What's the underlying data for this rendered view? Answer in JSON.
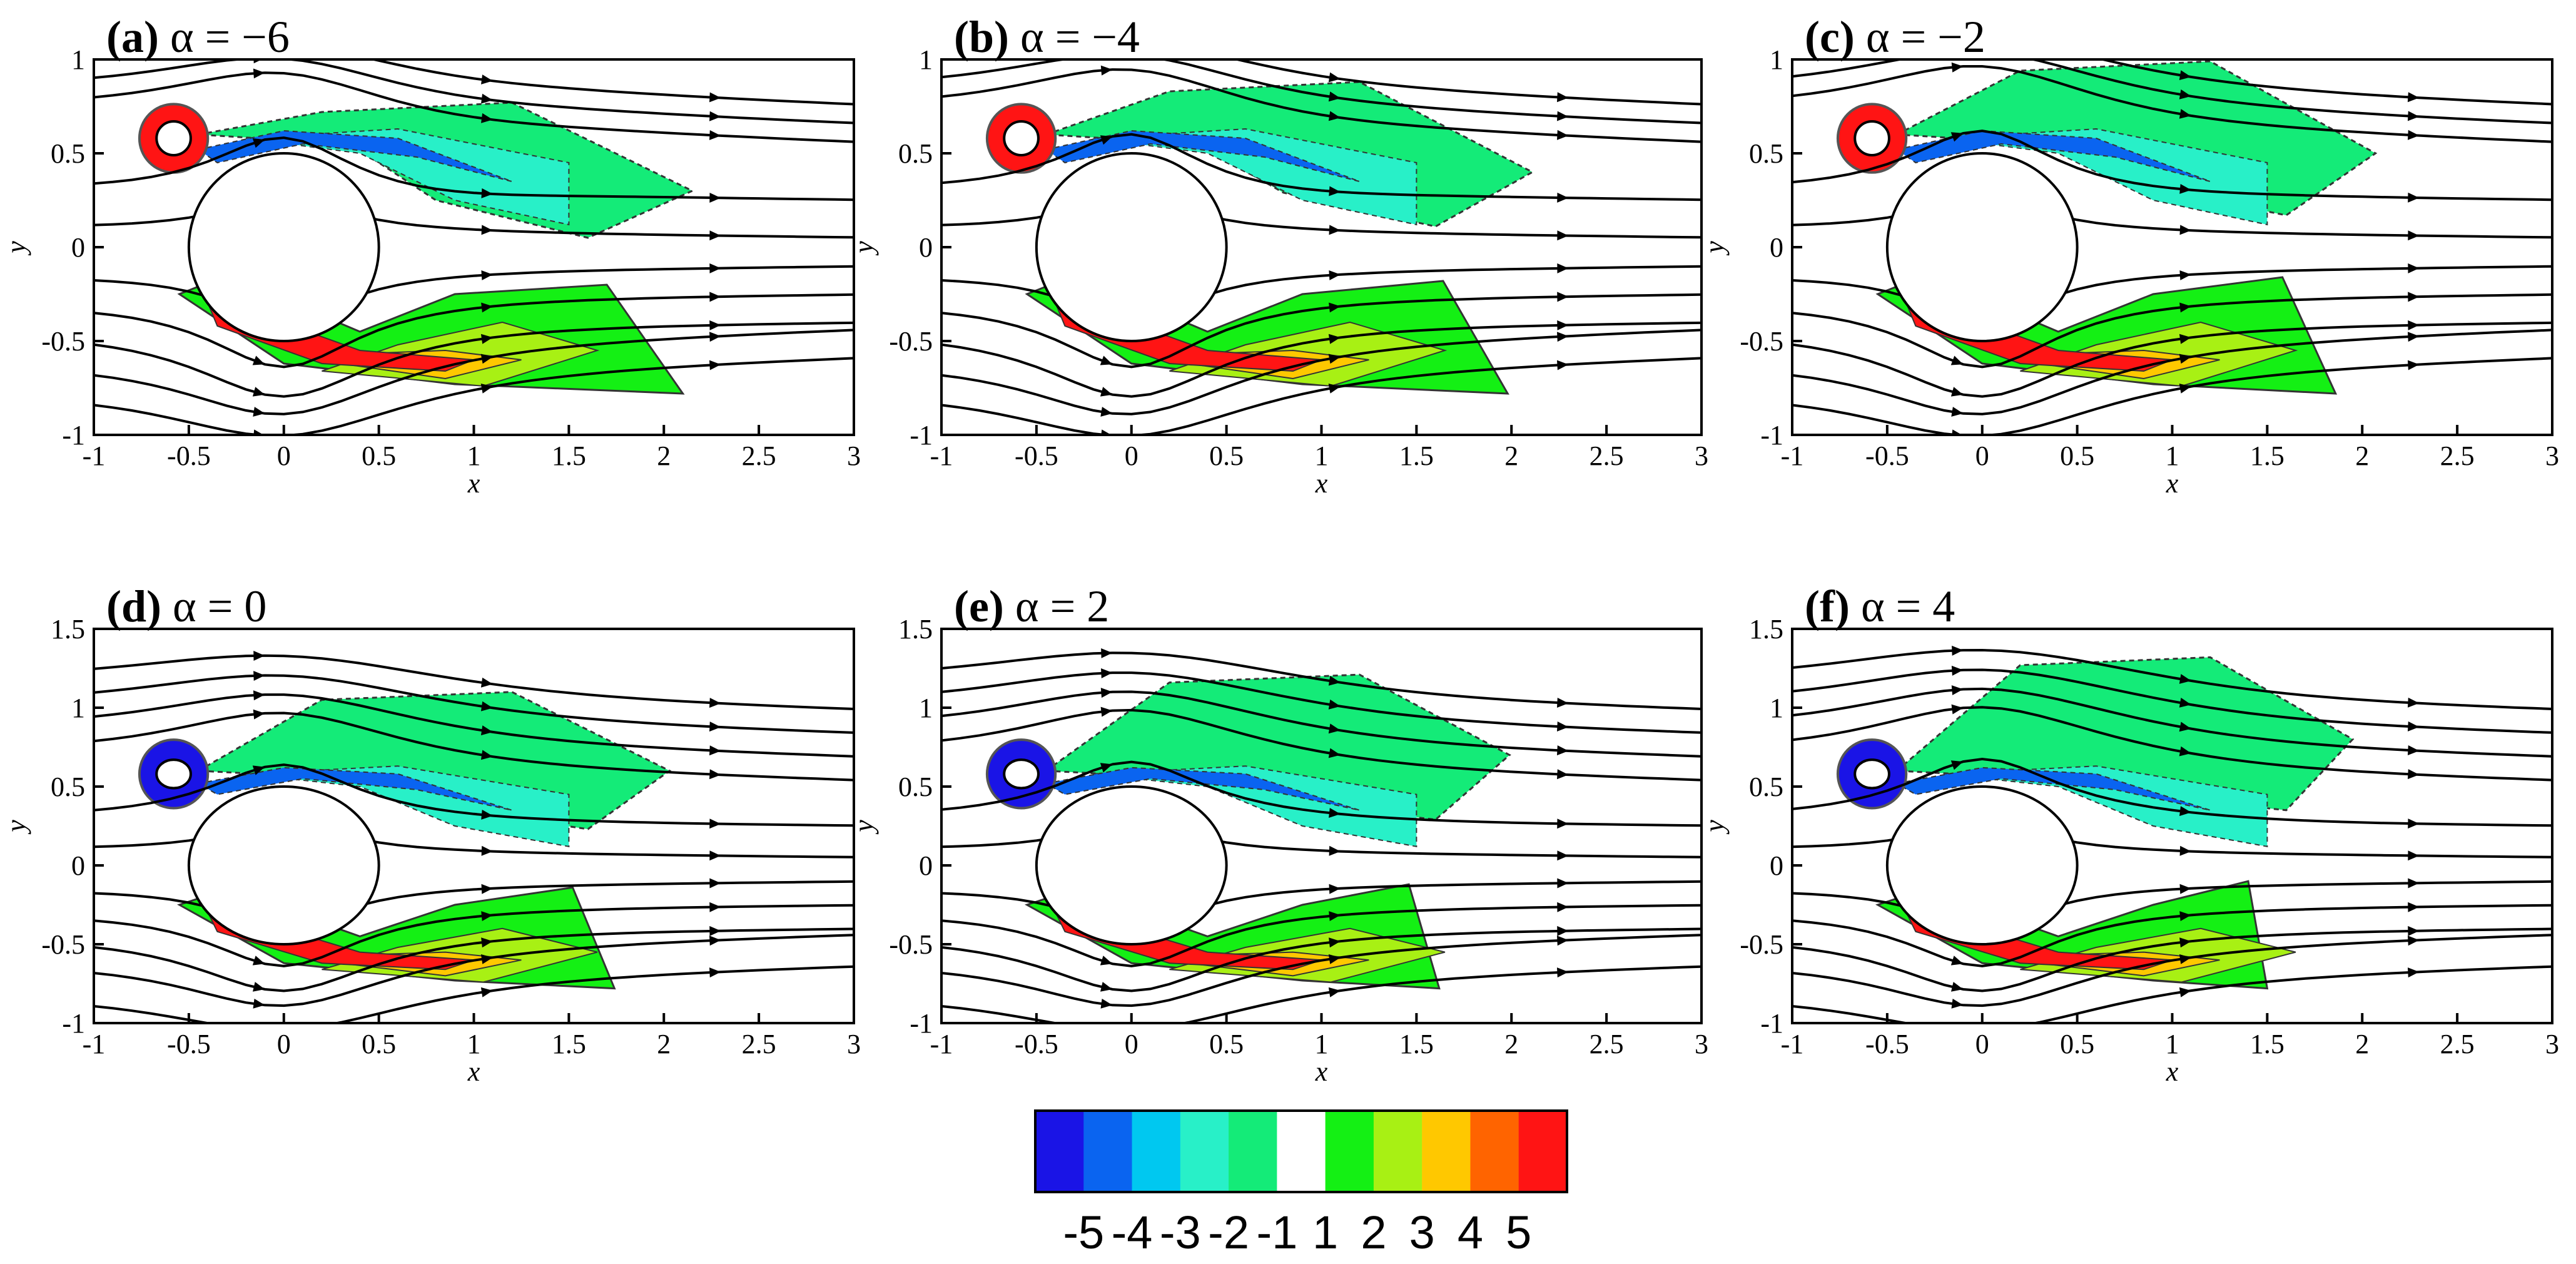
{
  "chart_data": {
    "type": "contour",
    "x_label": "x",
    "y_label": "y",
    "x_ticks": [
      -1,
      -0.5,
      0,
      0.5,
      1,
      1.5,
      2,
      2.5,
      3
    ],
    "x_tick_labels": [
      "-1",
      "-0.5",
      "0",
      "0.5",
      "1",
      "1.5",
      "2",
      "2.5",
      "3"
    ],
    "xlim": [
      -1,
      3
    ],
    "big_cylinder": {
      "x": 0,
      "y": 0,
      "r": 0.5
    },
    "panels": [
      {
        "id": "a",
        "tag": "(a)",
        "alpha_label": "α = −6",
        "alpha": -6,
        "ylim": [
          -1,
          1
        ],
        "y_ticks": [
          -1,
          -0.5,
          0,
          0.5,
          1
        ],
        "y_tick_labels": [
          "-1",
          "-0.5",
          "0",
          "0.5",
          "1"
        ],
        "small_cylinder": {
          "x": -0.58,
          "y": 0.58,
          "r": 0.09
        }
      },
      {
        "id": "b",
        "tag": "(b)",
        "alpha_label": "α = −4",
        "alpha": -4,
        "ylim": [
          -1,
          1
        ],
        "y_ticks": [
          -1,
          -0.5,
          0,
          0.5,
          1
        ],
        "y_tick_labels": [
          "-1",
          "-0.5",
          "0",
          "0.5",
          "1"
        ],
        "small_cylinder": {
          "x": -0.58,
          "y": 0.58,
          "r": 0.09
        }
      },
      {
        "id": "c",
        "tag": "(c)",
        "alpha_label": "α = −2",
        "alpha": -2,
        "ylim": [
          -1,
          1
        ],
        "y_ticks": [
          -1,
          -0.5,
          0,
          0.5,
          1
        ],
        "y_tick_labels": [
          "-1",
          "-0.5",
          "0",
          "0.5",
          "1"
        ],
        "small_cylinder": {
          "x": -0.58,
          "y": 0.58,
          "r": 0.09
        }
      },
      {
        "id": "d",
        "tag": "(d)",
        "alpha_label": "α = 0",
        "alpha": 0,
        "ylim": [
          -1,
          1.5
        ],
        "y_ticks": [
          -1,
          -0.5,
          0,
          0.5,
          1,
          1.5
        ],
        "y_tick_labels": [
          "-1",
          "-0.5",
          "0",
          "0.5",
          "1",
          "1.5"
        ],
        "small_cylinder": {
          "x": -0.58,
          "y": 0.58,
          "r": 0.09
        }
      },
      {
        "id": "e",
        "tag": "(e)",
        "alpha_label": "α = 2",
        "alpha": 2,
        "ylim": [
          -1,
          1.5
        ],
        "y_ticks": [
          -1,
          -0.5,
          0,
          0.5,
          1,
          1.5
        ],
        "y_tick_labels": [
          "-1",
          "-0.5",
          "0",
          "0.5",
          "1",
          "1.5"
        ],
        "small_cylinder": {
          "x": -0.58,
          "y": 0.58,
          "r": 0.09
        }
      },
      {
        "id": "f",
        "tag": "(f)",
        "alpha_label": "α = 4",
        "alpha": 4,
        "ylim": [
          -1,
          1.5
        ],
        "y_ticks": [
          -1,
          -0.5,
          0,
          0.5,
          1,
          1.5
        ],
        "y_tick_labels": [
          "-1",
          "-0.5",
          "0",
          "0.5",
          "1",
          "1.5"
        ],
        "small_cylinder": {
          "x": -0.58,
          "y": 0.58,
          "r": 0.09
        }
      }
    ],
    "colorbar": {
      "levels": [
        "-5",
        "-4",
        "-3",
        "-2",
        "-1",
        "1",
        "2",
        "3",
        "4",
        "5"
      ],
      "colors": [
        "#1a14e6",
        "#0a64f0",
        "#00c8f0",
        "#28f0c8",
        "#14eb78",
        "#ffffff",
        "#14f014",
        "#a8f014",
        "#ffc800",
        "#ff6400",
        "#ff1414"
      ]
    }
  }
}
